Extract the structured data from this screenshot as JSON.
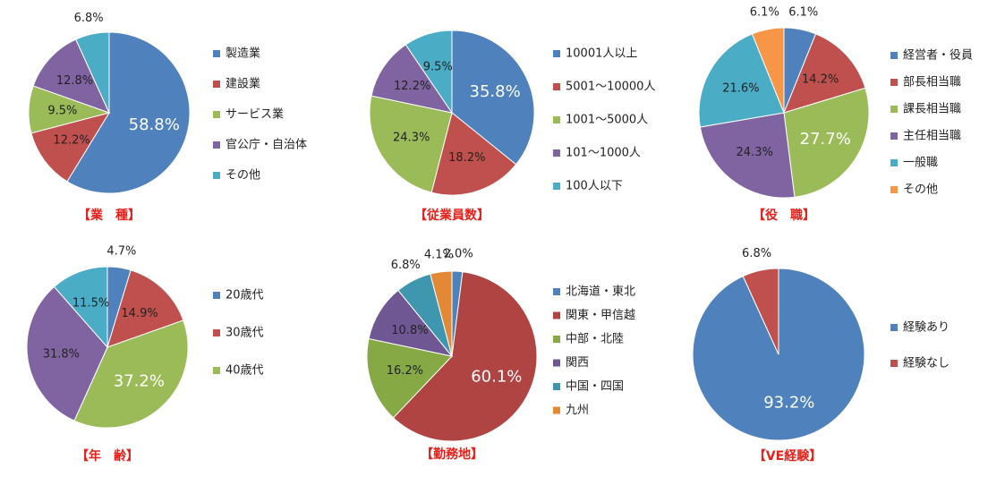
{
  "chart_data": [
    {
      "type": "pie",
      "title": "【業　種】",
      "categories": [
        "製造業",
        "建設業",
        "サービス業",
        "官公庁・自治体",
        "その他"
      ],
      "values": [
        58.8,
        12.2,
        9.5,
        12.8,
        6.8
      ],
      "value_labels": [
        "58.8%",
        "12.2%",
        "9.5%",
        "12.8%",
        "6.8%"
      ],
      "colors": [
        "#4f81bd",
        "#c0504d",
        "#9bbb59",
        "#8064a2",
        "#4bacc6"
      ]
    },
    {
      "type": "pie",
      "title": "【従業員数】",
      "categories": [
        "10001人以上",
        "5001～10000人",
        "1001～5000人",
        "101～1000人",
        "100人以下"
      ],
      "values": [
        35.8,
        18.2,
        24.3,
        12.2,
        9.5
      ],
      "value_labels": [
        "35.8%",
        "18.2%",
        "24.3%",
        "12.2%",
        "9.5%"
      ],
      "colors": [
        "#4f81bd",
        "#c0504d",
        "#9bbb59",
        "#8064a2",
        "#4bacc6"
      ]
    },
    {
      "type": "pie",
      "title": "【役　職】",
      "categories": [
        "経営者・役員",
        "部長相当職",
        "課長相当職",
        "主任相当職",
        "一般職",
        "その他"
      ],
      "values": [
        6.1,
        14.2,
        27.7,
        24.3,
        21.6,
        6.1
      ],
      "value_labels": [
        "6.1%",
        "14.2%",
        "27.7%",
        "24.3%",
        "21.6%",
        "6.1%"
      ],
      "colors": [
        "#4f81bd",
        "#c0504d",
        "#9bbb59",
        "#8064a2",
        "#4bacc6",
        "#f79646"
      ]
    },
    {
      "type": "pie",
      "title": "【年　齢】",
      "categories": [
        "20歳代",
        "30歳代",
        "40歳代",
        null,
        null
      ],
      "values": [
        4.7,
        14.9,
        37.2,
        31.8,
        11.5
      ],
      "value_labels": [
        "4.7%",
        "14.9%",
        "37.2%",
        "31.8%",
        "11.5%"
      ],
      "colors": [
        "#4f81bd",
        "#c0504d",
        "#9bbb59",
        "#8064a2",
        "#4bacc6"
      ]
    },
    {
      "type": "pie",
      "title": "【勤務地】",
      "categories": [
        "北海道・東北",
        "関東・甲信越",
        "中部・北陸",
        "関西",
        "中国・四国",
        "九州"
      ],
      "values": [
        2.0,
        60.1,
        16.2,
        10.8,
        6.8,
        4.1
      ],
      "value_labels": [
        "2.0%",
        "60.1%",
        "16.2%",
        "10.8%",
        "6.8%",
        "4.1%"
      ],
      "colors": [
        "#4f81bd",
        "#b04442",
        "#86a845",
        "#6f5794",
        "#3f97af",
        "#e38936"
      ]
    },
    {
      "type": "pie",
      "title": "【VE経験】",
      "categories": [
        "経験あり",
        "経験なし"
      ],
      "values": [
        93.2,
        6.8
      ],
      "value_labels": [
        "93.2%",
        "6.8%"
      ],
      "colors": [
        "#4f81bd",
        "#c0504d"
      ]
    }
  ]
}
